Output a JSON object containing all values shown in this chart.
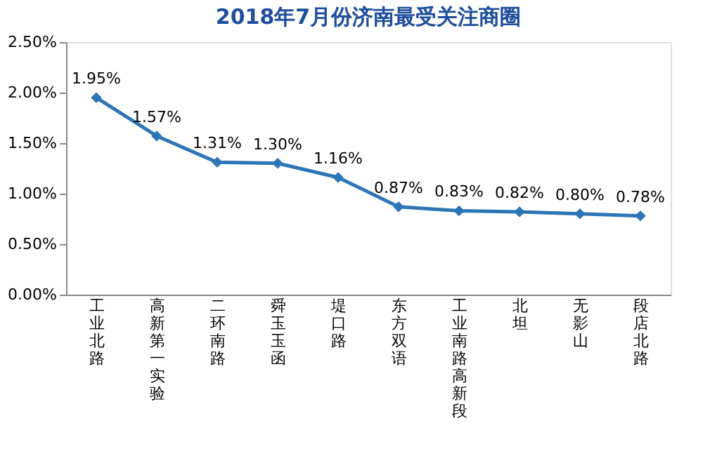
{
  "chart_data": {
    "type": "line",
    "title": "2018年7月份济南最受关注商圈",
    "categories": [
      "工业北路",
      "高新第一实验",
      "二环南路",
      "舜玉玉函",
      "堤口路",
      "东方双语",
      "工业南路高新段",
      "北坦",
      "无影山",
      "段店北路"
    ],
    "series": [
      {
        "color": "#2e75b6",
        "values": [
          1.95,
          1.57,
          1.31,
          1.3,
          1.16,
          0.87,
          0.83,
          0.82,
          0.8,
          0.78
        ],
        "value_labels": [
          "1.95%",
          "1.57%",
          "1.31%",
          "1.30%",
          "1.16%",
          "0.87%",
          "0.83%",
          "0.82%",
          "0.80%",
          "0.78%"
        ]
      }
    ],
    "ylim": [
      0,
      2.5
    ],
    "yticks": [
      {
        "value": 0,
        "label": "0.00%"
      },
      {
        "value": 0.5,
        "label": "0.50%"
      },
      {
        "value": 1,
        "label": "1.00%"
      },
      {
        "value": 1.5,
        "label": "1.50%"
      },
      {
        "value": 2,
        "label": "2.00%"
      },
      {
        "value": 2.5,
        "label": "2.50%"
      }
    ],
    "grid": false,
    "legend": false,
    "marker": "diamond",
    "line_style": "solid"
  }
}
